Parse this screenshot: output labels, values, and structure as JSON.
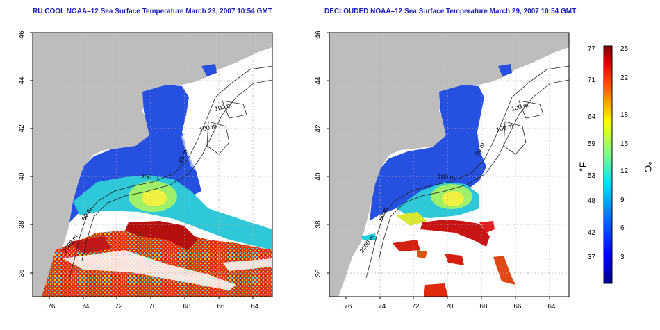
{
  "panels": [
    {
      "title": "RU COOL NOAA–12 Sea Surface Temperature March 29, 2007 10:54 GMT",
      "contour_labels": [
        "100 m",
        "100 m",
        "50 m",
        "200 m",
        "50 m",
        "2000 m"
      ]
    },
    {
      "title": "DECLOUDED NOAA–12 Sea Surface Temperature March 29, 2007 10:54 GMT",
      "contour_labels": [
        "100 m",
        "100 m",
        "50 m",
        "200 m",
        "50 m",
        "2000 m"
      ]
    }
  ],
  "axes": {
    "x_ticks": [
      "−76",
      "−74",
      "−72",
      "−70",
      "−68",
      "−66",
      "−64"
    ],
    "y_ticks": [
      "36",
      "38",
      "40",
      "42",
      "44",
      "46"
    ]
  },
  "colorbar": {
    "fahrenheit_label": "°F",
    "celsius_label": "°C",
    "fahrenheit_ticks": [
      "37",
      "42",
      "48",
      "53",
      "59",
      "64",
      "71",
      "77"
    ],
    "celsius_ticks": [
      "3",
      "6",
      "9",
      "12",
      "15",
      "18",
      "22",
      "25"
    ]
  },
  "colors": {
    "title": "#1f1fb4",
    "land": "#bdbdbd",
    "cold": "#1f3fd8",
    "warm": "#c81414"
  }
}
